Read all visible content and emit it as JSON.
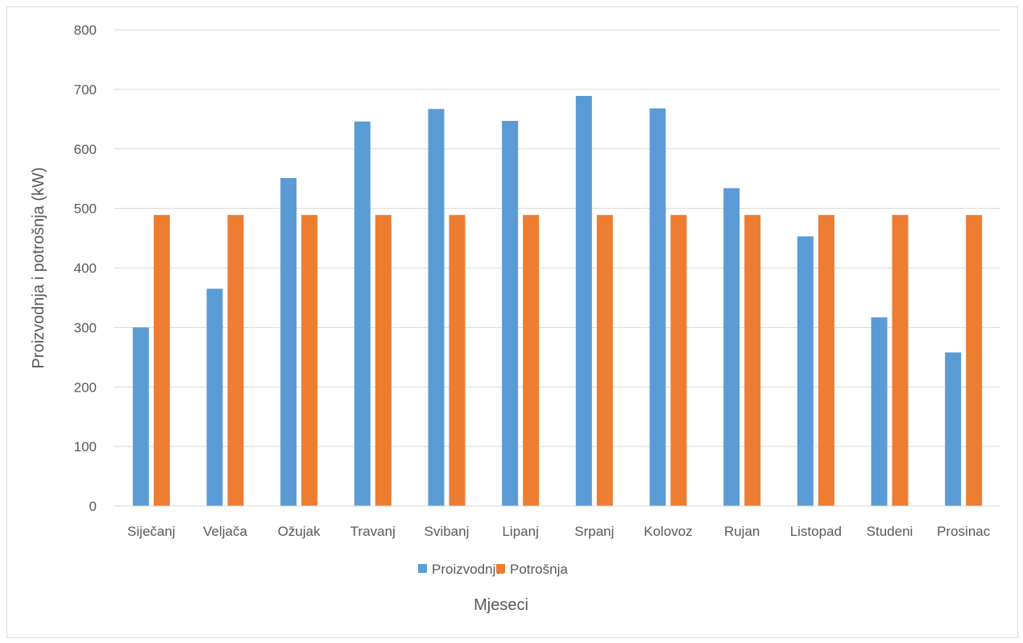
{
  "chart_data": {
    "type": "bar",
    "categories": [
      "Siječanj",
      "Veljača",
      "Ožujak",
      "Travanj",
      "Svibanj",
      "Lipanj",
      "Srpanj",
      "Kolovoz",
      "Rujan",
      "Listopad",
      "Studeni",
      "Prosinac"
    ],
    "series": [
      {
        "name": "Proizvodnja",
        "color": "#5b9bd5",
        "values": [
          300,
          365,
          551,
          646,
          667,
          647,
          689,
          668,
          534,
          453,
          317,
          258
        ]
      },
      {
        "name": "Potrošnja",
        "color": "#ed7d31",
        "values": [
          489,
          489,
          489,
          489,
          489,
          489,
          489,
          489,
          489,
          489,
          489,
          489
        ]
      }
    ],
    "xlabel": "Mjeseci",
    "ylabel": "Proizvodnja i potrošnja (kW)",
    "ylim": [
      0,
      800
    ],
    "yticks": [
      0,
      100,
      200,
      300,
      400,
      500,
      600,
      700,
      800
    ],
    "grid": true,
    "legend_position": "bottom"
  }
}
